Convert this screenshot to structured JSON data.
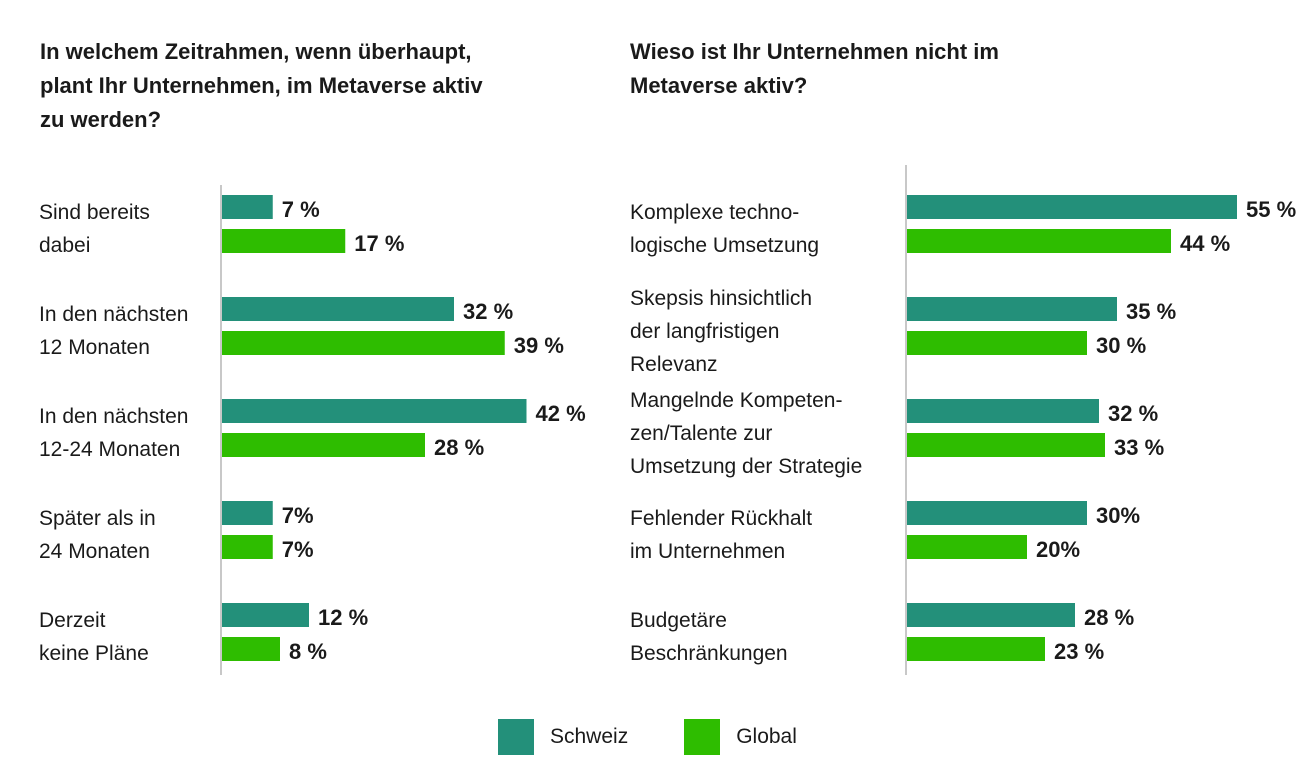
{
  "colors": {
    "schweiz": "#23907a",
    "global": "#2ebd00",
    "axis": "#c8c8c8"
  },
  "legend": {
    "schweiz": "Schweiz",
    "global": "Global"
  },
  "chart_data": [
    {
      "type": "bar",
      "orientation": "horizontal",
      "title": "In welchem Zeitrahmen, wenn überhaupt, plant Ihr Unternehmen, im Metaverse aktiv zu werden?",
      "categories": [
        [
          "Sind bereits",
          "dabei"
        ],
        [
          "In den nächsten",
          "12 Monaten"
        ],
        [
          "In den nächsten",
          "12-24 Monaten"
        ],
        [
          "Später als in",
          "24 Monaten"
        ],
        [
          "Derzeit",
          "keine Pläne"
        ]
      ],
      "series": [
        {
          "name": "Schweiz",
          "values": [
            7,
            32,
            42,
            7,
            12
          ],
          "labels": [
            "7 %",
            "32 %",
            "42 %",
            "7%",
            "12 %"
          ]
        },
        {
          "name": "Global",
          "values": [
            17,
            39,
            28,
            7,
            8
          ],
          "labels": [
            "17 %",
            "39 %",
            "28 %",
            "7%",
            "8 %"
          ]
        }
      ],
      "xlim": [
        0,
        55
      ]
    },
    {
      "type": "bar",
      "orientation": "horizontal",
      "title": "Wieso ist Ihr Unternehmen nicht im Metaverse aktiv?",
      "categories": [
        [
          "Komplexe techno-",
          "logische Umsetzung"
        ],
        [
          "Skepsis hinsichtlich",
          "der langfristigen",
          "Relevanz"
        ],
        [
          "Mangelnde Kompeten-",
          "zen/Talente zur",
          "Umsetzung der Strategie"
        ],
        [
          "Fehlender Rückhalt",
          "im Unternehmen"
        ],
        [
          "Budgetäre",
          "Beschränkungen"
        ]
      ],
      "series": [
        {
          "name": "Schweiz",
          "values": [
            55,
            35,
            32,
            30,
            28
          ],
          "labels": [
            "55 %",
            "35 %",
            "32 %",
            "30%",
            "28 %"
          ]
        },
        {
          "name": "Global",
          "values": [
            44,
            30,
            33,
            20,
            23
          ],
          "labels": [
            "44 %",
            "30 %",
            "33 %",
            "20%",
            "23 %"
          ]
        }
      ],
      "xlim": [
        0,
        55
      ]
    }
  ]
}
